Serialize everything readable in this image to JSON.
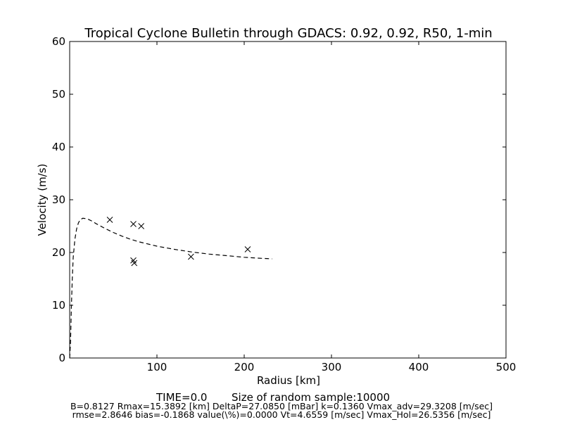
{
  "chart_data": {
    "type": "scatter",
    "title": "Tropical Cyclone Bulletin through GDACS: 0.92, 0.92, R50, 1-min",
    "xlabel": "Radius [km]",
    "ylabel": "Velocity (m/s)",
    "xlim": [
      0,
      500
    ],
    "ylim": [
      0,
      60
    ],
    "xticks": [
      100,
      200,
      300,
      400,
      500
    ],
    "yticks": [
      0,
      10,
      20,
      30,
      40,
      50,
      60
    ],
    "grid": false,
    "legend": "none",
    "series": [
      {
        "style": "x-markers",
        "x": [
          46,
          73,
          73,
          74,
          82,
          139,
          204
        ],
        "y": [
          26.2,
          25.4,
          18.5,
          18.0,
          25.0,
          19.2,
          20.6
        ]
      },
      {
        "style": "dashed-line",
        "x": [
          0,
          1,
          2,
          3,
          4,
          6,
          8,
          10,
          12,
          15,
          20,
          25,
          30,
          40,
          50,
          60,
          70,
          80,
          100,
          120,
          140,
          160,
          180,
          200,
          220,
          232
        ],
        "y": [
          0,
          3,
          10,
          15,
          19,
          22.5,
          24.5,
          25.6,
          26.2,
          26.5,
          26.4,
          26.0,
          25.5,
          24.6,
          23.8,
          23.1,
          22.5,
          22.0,
          21.2,
          20.6,
          20.1,
          19.7,
          19.4,
          19.1,
          18.9,
          18.8
        ]
      }
    ],
    "annotations": {
      "time": "TIME=0.0",
      "sample": "Size of random sample:10000",
      "line1": "B=0.8127 Rmax=15.3892 [km]  DeltaP=27.0850 [mBar] k=0.1360 Vmax_adv=29.3208 [m/sec]",
      "line2": "rmse=2.8646 bias=-0.1868 value(\\%)=0.0000 Vt=4.6559 [m/sec] Vmax_Hol=26.5356 [m/sec]"
    }
  }
}
